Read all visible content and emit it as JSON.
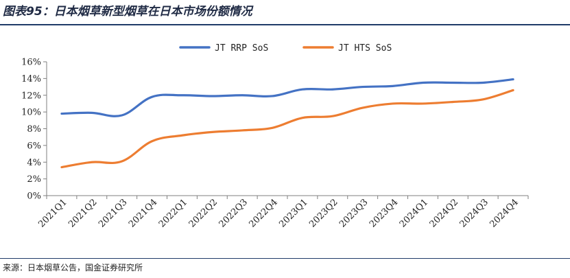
{
  "figure": {
    "title": "图表95：日本烟草新型烟草在日本市场份额情况",
    "source": "来源：日本烟草公告，国金证券研究所"
  },
  "chart_data": {
    "type": "line",
    "title": "",
    "xlabel": "",
    "ylabel": "",
    "categories": [
      "2021Q1",
      "2021Q2",
      "2021Q3",
      "2021Q4",
      "2022Q1",
      "2022Q2",
      "2022Q3",
      "2022Q4",
      "2023Q1",
      "2023Q2",
      "2023Q3",
      "2023Q4",
      "2024Q1",
      "2024Q2",
      "2024Q3",
      "2024Q4"
    ],
    "series": [
      {
        "name": "JT RRP SoS",
        "color": "#4472c4",
        "values": [
          9.8,
          9.9,
          9.6,
          11.8,
          12.0,
          11.9,
          12.0,
          11.9,
          12.7,
          12.7,
          13.0,
          13.1,
          13.5,
          13.5,
          13.5,
          13.9
        ]
      },
      {
        "name": "JT HTS SoS",
        "color": "#ed7d31",
        "values": [
          3.4,
          4.0,
          4.1,
          6.5,
          7.2,
          7.6,
          7.8,
          8.1,
          9.3,
          9.5,
          10.5,
          11.0,
          11.0,
          11.2,
          11.5,
          12.6
        ]
      }
    ],
    "ylim": [
      0,
      16
    ],
    "yticks": [
      "0%",
      "2%",
      "4%",
      "6%",
      "8%",
      "10%",
      "12%",
      "14%",
      "16%"
    ],
    "grid": false,
    "legend": "top-center"
  }
}
